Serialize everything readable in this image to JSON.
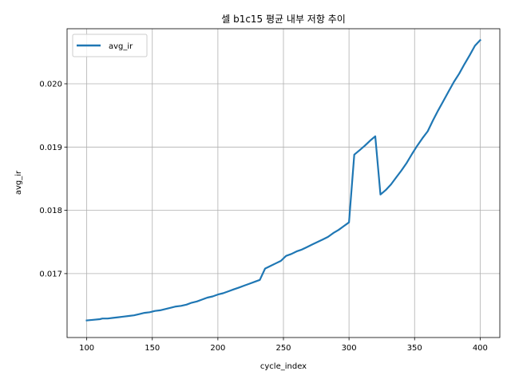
{
  "chart_data": {
    "type": "line",
    "title": "셀 b1c15 평균 내부 저항 추이",
    "xlabel": "cycle_index",
    "ylabel": "avg_ir",
    "xlim": [
      85,
      415
    ],
    "ylim": [
      0.01599,
      0.02087
    ],
    "xticks": [
      100,
      150,
      200,
      250,
      300,
      350,
      400
    ],
    "yticks": [
      0.017,
      0.018,
      0.019,
      0.02
    ],
    "xtick_labels": [
      "100",
      "150",
      "200",
      "250",
      "300",
      "350",
      "400"
    ],
    "ytick_labels": [
      "0.017",
      "0.018",
      "0.019",
      "0.020"
    ],
    "grid": true,
    "legend": {
      "position": "top-left",
      "entries": [
        "avg_ir"
      ]
    },
    "series": [
      {
        "name": "avg_ir",
        "color": "#1f77b4",
        "x": [
          100,
          105,
          110,
          112,
          116,
          120,
          124,
          128,
          132,
          136,
          140,
          144,
          148,
          152,
          156,
          160,
          164,
          168,
          172,
          176,
          180,
          184,
          188,
          192,
          196,
          200,
          204,
          208,
          212,
          216,
          220,
          224,
          228,
          232,
          236,
          240,
          244,
          248,
          252,
          256,
          260,
          264,
          268,
          272,
          276,
          280,
          284,
          288,
          292,
          296,
          300,
          304,
          308,
          312,
          316,
          320,
          324,
          328,
          332,
          336,
          340,
          344,
          348,
          352,
          356,
          360,
          364,
          368,
          372,
          376,
          380,
          384,
          388,
          392,
          396,
          400
        ],
        "values": [
          0.01626,
          0.01627,
          0.01628,
          0.01629,
          0.01629,
          0.0163,
          0.01631,
          0.01632,
          0.01633,
          0.01634,
          0.01636,
          0.01638,
          0.01639,
          0.01641,
          0.01642,
          0.01644,
          0.01646,
          0.01648,
          0.01649,
          0.01651,
          0.01654,
          0.01656,
          0.01659,
          0.01662,
          0.01664,
          0.01667,
          0.01669,
          0.01672,
          0.01675,
          0.01678,
          0.01681,
          0.01684,
          0.01687,
          0.0169,
          0.01708,
          0.01712,
          0.01716,
          0.0172,
          0.01728,
          0.01731,
          0.01735,
          0.01738,
          0.01742,
          0.01746,
          0.0175,
          0.01754,
          0.01758,
          0.01764,
          0.01769,
          0.01775,
          0.01781,
          0.01888,
          0.01895,
          0.01902,
          0.0191,
          0.01917,
          0.01825,
          0.01832,
          0.01841,
          0.01852,
          0.01863,
          0.01875,
          0.01889,
          0.01902,
          0.01914,
          0.01925,
          0.01942,
          0.01958,
          0.01973,
          0.01988,
          0.02003,
          0.02016,
          0.02031,
          0.02045,
          0.0206,
          0.02069
        ]
      }
    ]
  }
}
